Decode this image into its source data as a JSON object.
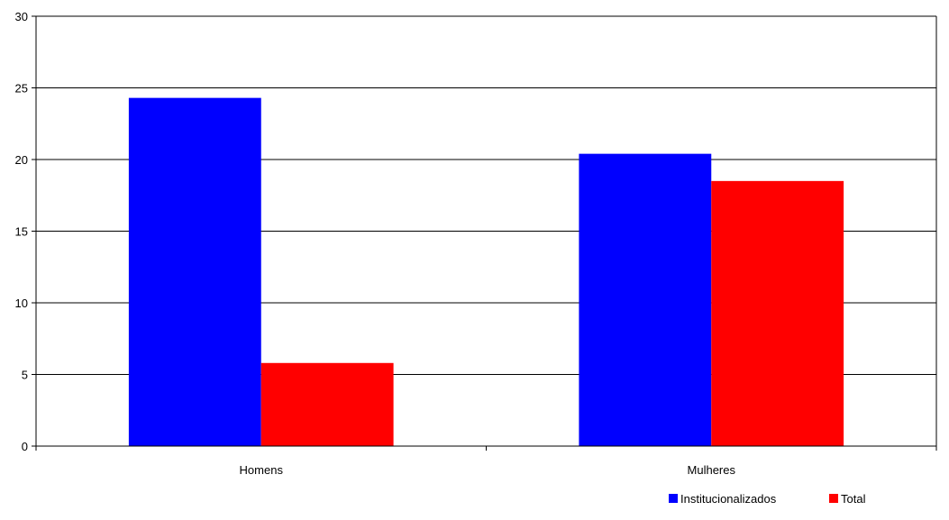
{
  "chart_data": {
    "type": "bar",
    "categories": [
      "Homens",
      "Mulheres"
    ],
    "series": [
      {
        "name": "Institucionalizados",
        "color": "#0000FF",
        "values": [
          24.3,
          20.4
        ]
      },
      {
        "name": "Total",
        "color": "#FF0000",
        "values": [
          5.8,
          18.5
        ]
      }
    ],
    "ylim": [
      0,
      30
    ],
    "yticks": [
      "0",
      "5",
      "10",
      "15",
      "20",
      "25",
      "30"
    ],
    "grid": true,
    "legend": "bottom-right",
    "title": "",
    "xlabel": "",
    "ylabel": ""
  }
}
